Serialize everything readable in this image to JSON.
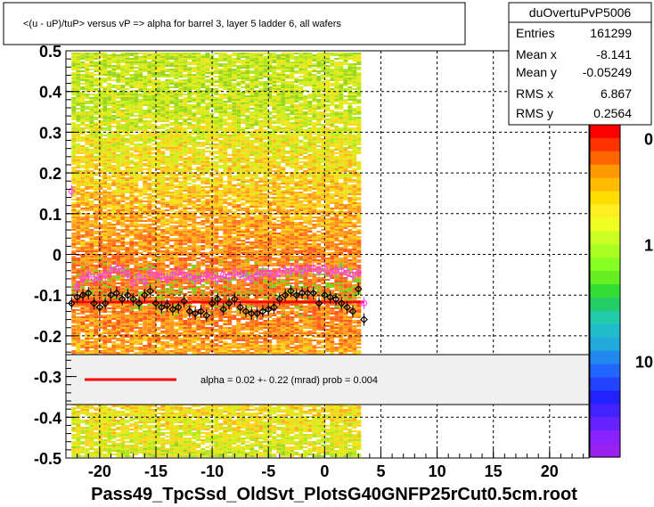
{
  "chart_data": {
    "type": "heatmap",
    "title": "<(u - uP)/tuP> versus   vP => alpha for barrel 3, layer 5 ladder 6, all wafers",
    "footer": "Pass49_TpcSsd_OldSvt_PlotsG40GNFP25rCut0.5cm.root",
    "xlim": [
      -23,
      23.5
    ],
    "ylim": [
      -0.5,
      0.5
    ],
    "x_ticks": [
      -20,
      -15,
      -10,
      -5,
      0,
      5,
      10,
      15,
      20
    ],
    "x_tick_labels": [
      "-20",
      "-15",
      "-10",
      "-5",
      "0",
      "5",
      "10",
      "15",
      "20"
    ],
    "y_ticks": [
      0.5,
      0.4,
      0.3,
      0.2,
      0.1,
      0,
      -0.1,
      -0.2,
      -0.3,
      -0.4,
      -0.5
    ],
    "y_tick_labels": [
      "0.5",
      "0.4",
      "0.3",
      "0.2",
      "0.1",
      "0",
      "-0.1",
      "-0.2",
      "-0.3",
      "-0.4",
      "-0.5"
    ],
    "grid": true,
    "stats": {
      "name": "duOvertuPvP5006",
      "rows": [
        {
          "label": "Entries",
          "value": "161299"
        },
        {
          "label": "Mean x",
          "value": "-8.141"
        },
        {
          "label": "Mean y",
          "value": "-0.05249"
        },
        {
          "label": "RMS x",
          "value": "6.867"
        },
        {
          "label": "RMS y",
          "value": "0.2564"
        }
      ]
    },
    "palette_labels": [
      {
        "text": "0",
        "pos": 0.06
      },
      {
        "text": "1",
        "pos": 0.38
      },
      {
        "text": "10",
        "pos": 0.73
      }
    ],
    "density_x_range": [
      -22.5,
      3.0
    ],
    "fit": {
      "label": "alpha =    0.02 +-  0.22 (mrad) prob = 0.004",
      "x": [
        -22.5,
        3.5
      ],
      "y": [
        -0.117,
        -0.117
      ],
      "color": "#ff0000"
    },
    "series": [
      {
        "marker": "open-circle",
        "color": "#ff44ff",
        "x": [
          -22.5,
          -22,
          -21.5,
          -21,
          -20.5,
          -20,
          -19.5,
          -19,
          -18.5,
          -18,
          -17.5,
          -17,
          -16.5,
          -16,
          -15.5,
          -15,
          -14.5,
          -14,
          -13.5,
          -13,
          -12.5,
          -12,
          -11.5,
          -11,
          -10.5,
          -10,
          -9.5,
          -9,
          -8.5,
          -8,
          -7.5,
          -7,
          -6.5,
          -6,
          -5.5,
          -5,
          -4.5,
          -4,
          -3.5,
          -3,
          -2.5,
          -2,
          -1.5,
          -1,
          -0.5,
          0,
          0.5,
          1,
          1.5,
          2,
          2.5,
          3,
          3.5
        ],
        "y": [
          0.155,
          -0.08,
          -0.06,
          -0.05,
          -0.06,
          -0.055,
          -0.05,
          -0.04,
          -0.035,
          -0.04,
          -0.05,
          -0.07,
          -0.055,
          -0.065,
          -0.045,
          -0.05,
          -0.055,
          -0.06,
          -0.05,
          -0.045,
          -0.05,
          -0.055,
          -0.06,
          -0.06,
          -0.05,
          -0.055,
          -0.06,
          -0.05,
          -0.055,
          -0.045,
          -0.05,
          -0.055,
          -0.06,
          -0.05,
          -0.045,
          -0.045,
          -0.05,
          -0.045,
          -0.04,
          -0.04,
          -0.035,
          -0.04,
          -0.035,
          -0.035,
          -0.04,
          -0.035,
          -0.045,
          -0.04,
          -0.04,
          -0.045,
          -0.05,
          -0.045,
          -0.12
        ]
      },
      {
        "marker": "open-diamond",
        "color": "#000000",
        "x": [
          -22.5,
          -22,
          -21.5,
          -21,
          -20.5,
          -20,
          -19.5,
          -19,
          -18.5,
          -18,
          -17.5,
          -17,
          -16.5,
          -16,
          -15.5,
          -15,
          -14.5,
          -14,
          -13.5,
          -13,
          -12.5,
          -12,
          -11.5,
          -11,
          -10.5,
          -10,
          -9.5,
          -9,
          -8.5,
          -8,
          -7.5,
          -7,
          -6.5,
          -6,
          -5.5,
          -5,
          -4.5,
          -4,
          -3.5,
          -3,
          -2.5,
          -2,
          -1.5,
          -1,
          -0.5,
          0,
          0.5,
          1,
          1.5,
          2,
          2.5,
          3,
          3.5
        ],
        "y": [
          -0.12,
          -0.105,
          -0.1,
          -0.095,
          -0.12,
          -0.13,
          -0.12,
          -0.1,
          -0.095,
          -0.11,
          -0.1,
          -0.11,
          -0.12,
          -0.1,
          -0.09,
          -0.12,
          -0.13,
          -0.125,
          -0.135,
          -0.13,
          -0.115,
          -0.14,
          -0.145,
          -0.14,
          -0.15,
          -0.12,
          -0.11,
          -0.135,
          -0.12,
          -0.11,
          -0.13,
          -0.14,
          -0.145,
          -0.145,
          -0.14,
          -0.135,
          -0.13,
          -0.11,
          -0.1,
          -0.09,
          -0.1,
          -0.095,
          -0.095,
          -0.095,
          -0.12,
          -0.1,
          -0.105,
          -0.11,
          -0.12,
          -0.13,
          -0.14,
          -0.085,
          -0.16
        ]
      }
    ]
  }
}
